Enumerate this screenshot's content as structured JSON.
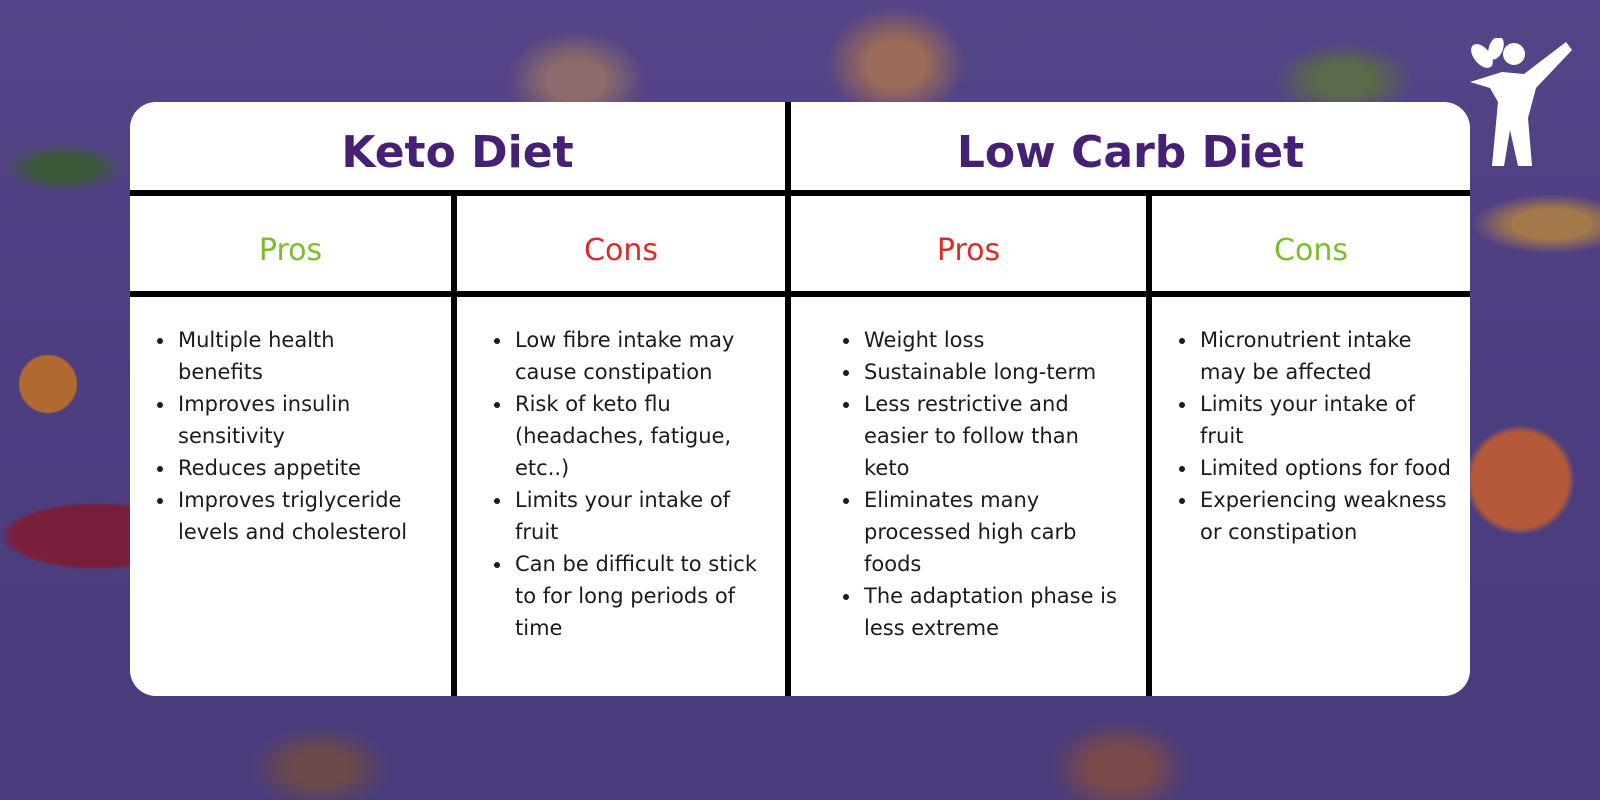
{
  "keto": {
    "title": "Keto Diet",
    "pros_label": "Pros",
    "cons_label": "Cons",
    "pros": [
      "Multiple health benefits",
      "Improves insulin sensitivity",
      "Reduces appetite",
      "Improves triglyceride levels and cholesterol"
    ],
    "cons": [
      "Low fibre intake may cause constipation",
      "Risk of keto flu (headaches, fatigue, etc..)",
      "Limits your intake of fruit",
      "Can be difficult to stick to for long periods of time"
    ]
  },
  "low_carb": {
    "title": "Low Carb Diet",
    "pros_label": "Pros",
    "cons_label": "Cons",
    "pros": [
      "Weight loss",
      "Sustainable long-term",
      "Less restrictive and easier to follow than keto",
      "Eliminates many processed high carb foods",
      "The adaptation phase is less extreme"
    ],
    "cons": [
      "Micronutrient intake may be affected",
      "Limits your intake of fruit",
      "Limited options for food",
      "Experiencing weakness or constipation"
    ]
  },
  "colors": {
    "title": "#462074",
    "pros_green": "#7bbd2a",
    "cons_red": "#dd2a2a",
    "background": "#4f3f86"
  },
  "icons": {
    "logo": "person-with-leaf-icon"
  }
}
